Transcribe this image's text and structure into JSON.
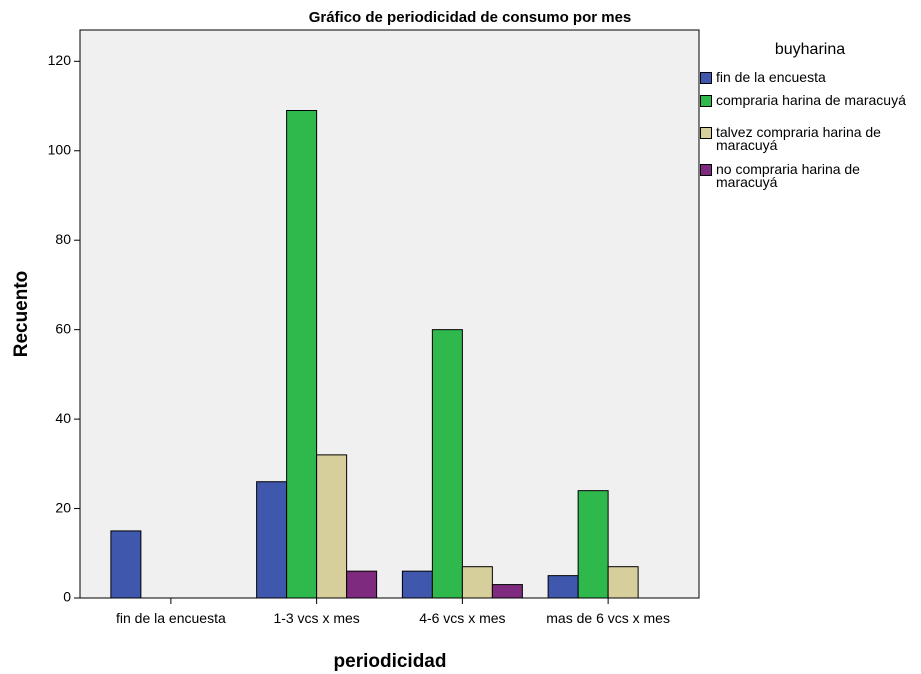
{
  "chart_data": {
    "type": "bar",
    "title": "Gráfico de periodicidad de consumo por mes",
    "x_label": "periodicidad",
    "y_label": "Recuento",
    "legend_title": "buyharina",
    "legend_position": "right",
    "categories": [
      "fin de la encuesta",
      "1-3 vcs x mes",
      "4-6 vcs x mes",
      "mas de 6 vcs x mes"
    ],
    "series": [
      {
        "name": "fin de la encuesta",
        "color": "#3f57ad",
        "values": [
          15,
          26,
          6,
          5
        ]
      },
      {
        "name": "compraria harina de maracuyá",
        "color": "#2fb84b",
        "values": [
          null,
          109,
          60,
          24
        ]
      },
      {
        "name": "talvez compraria harina de maracuyá",
        "color": "#d6cf9c",
        "values": [
          null,
          32,
          7,
          7
        ]
      },
      {
        "name": "no compraria harina de maracuyá",
        "color": "#7d2a7f",
        "values": [
          null,
          6,
          3,
          null
        ]
      }
    ],
    "ylim": [
      0,
      127
    ],
    "yticks": [
      0,
      20,
      40,
      60,
      80,
      100,
      120
    ],
    "grid": false
  }
}
